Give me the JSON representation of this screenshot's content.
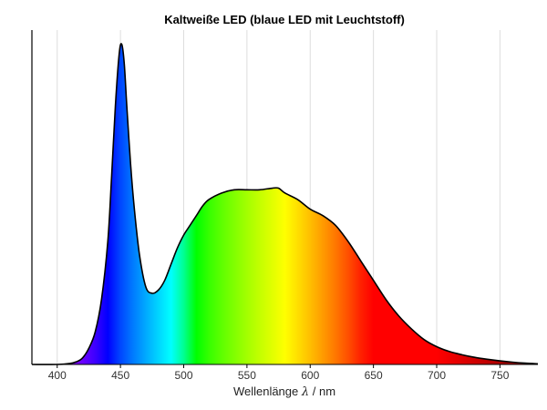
{
  "chart_data": {
    "type": "area",
    "title": "Kaltweiße LED (blaue LED mit Leuchtstoff)",
    "xlabel_text": "Wellenlänge",
    "xlabel_symbol": "λ",
    "xlabel_unit": "/ nm",
    "xlim": [
      380,
      780
    ],
    "ylim": [
      0,
      1.0
    ],
    "x_ticks": [
      400,
      450,
      500,
      550,
      600,
      650,
      700,
      750
    ],
    "grid": true,
    "fill": "visible-spectrum gradient",
    "series": [
      {
        "x": [
          380,
          400,
          410,
          415,
          420,
          425,
          430,
          435,
          440,
          443,
          446,
          449,
          451,
          453,
          455,
          458,
          461,
          465,
          470,
          475,
          480,
          485,
          490,
          495,
          500,
          505,
          510,
          515,
          520,
          530,
          540,
          550,
          560,
          570,
          575,
          580,
          590,
          600,
          610,
          620,
          630,
          640,
          650,
          660,
          670,
          680,
          690,
          700,
          710,
          720,
          730,
          740,
          750,
          760,
          770,
          780
        ],
        "y": [
          0.0,
          0.0,
          0.003,
          0.008,
          0.02,
          0.05,
          0.1,
          0.2,
          0.38,
          0.58,
          0.8,
          0.96,
          0.99,
          0.93,
          0.8,
          0.62,
          0.48,
          0.34,
          0.24,
          0.22,
          0.23,
          0.26,
          0.31,
          0.36,
          0.4,
          0.43,
          0.46,
          0.49,
          0.51,
          0.53,
          0.54,
          0.54,
          0.54,
          0.545,
          0.545,
          0.53,
          0.51,
          0.48,
          0.46,
          0.43,
          0.38,
          0.32,
          0.26,
          0.2,
          0.15,
          0.11,
          0.077,
          0.055,
          0.04,
          0.03,
          0.022,
          0.016,
          0.011,
          0.007,
          0.004,
          0.002
        ]
      }
    ]
  }
}
